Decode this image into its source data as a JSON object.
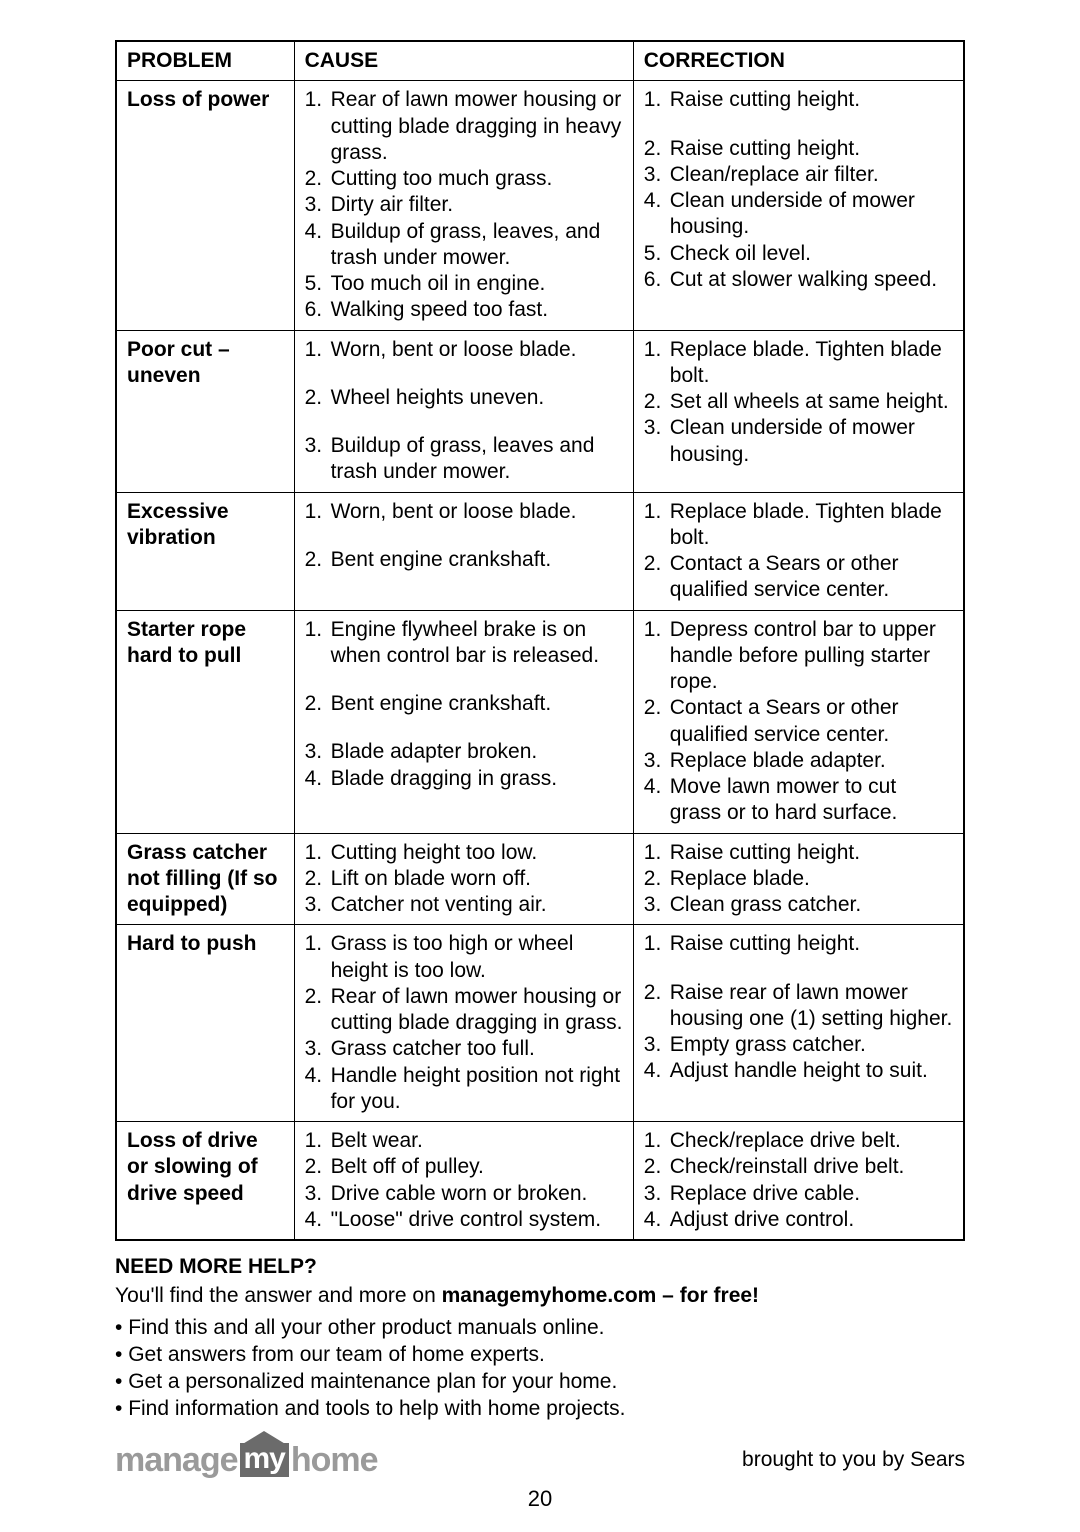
{
  "table": {
    "headers": {
      "problem": "PROBLEM",
      "cause": "CAUSE",
      "correction": "CORRECTION"
    },
    "rows": [
      {
        "problem": "Loss of power",
        "causes": [
          "Rear of lawn mower housing or cutting blade dragging in heavy grass.",
          "Cutting too much grass.",
          "Dirty air filter.",
          "Buildup of grass, leaves, and trash under mower.",
          "Too much oil in engine.",
          "Walking speed too fast."
        ],
        "corrections": [
          "Raise cutting height.",
          "Raise cutting height.",
          "Clean/replace air filter.",
          "Clean underside of mower housing.",
          "Check oil level.",
          "Cut at slower walking speed."
        ],
        "correction_spacer_after_1": true
      },
      {
        "problem": "Poor cut – uneven",
        "causes": [
          "Worn, bent or loose blade.",
          "Wheel heights uneven.",
          "Buildup of grass, leaves and trash under mower."
        ],
        "corrections": [
          "Replace blade. Tighten blade bolt.",
          "Set all wheels at same height.",
          "Clean underside of mower housing."
        ],
        "cause_spacing": true
      },
      {
        "problem": "Excessive vibration",
        "causes": [
          "Worn, bent or loose blade.",
          "Bent engine crankshaft."
        ],
        "corrections": [
          "Replace blade. Tighten blade bolt.",
          "Contact a Sears or other qualified service center."
        ],
        "cause_spacing": true
      },
      {
        "problem": "Starter rope hard to pull",
        "causes": [
          "Engine flywheel brake is on when control bar is released.",
          "Bent engine crankshaft.",
          "Blade adapter broken.",
          "Blade dragging in grass."
        ],
        "corrections": [
          "Depress control bar to upper handle before pulling starter rope.",
          "Contact a Sears or other qualified service center.",
          "Replace blade adapter.",
          "Move lawn mower to cut grass or to hard surface."
        ],
        "cause_spacing_2_3": true
      },
      {
        "problem": "Grass catcher not filling (If so equipped)",
        "causes": [
          "Cutting height too low.",
          "Lift on blade worn off.",
          "Catcher not venting air."
        ],
        "corrections": [
          "Raise cutting height.",
          "Replace blade.",
          "Clean grass catcher."
        ]
      },
      {
        "problem": "Hard to push",
        "causes": [
          "Grass is too high or wheel height is too low.",
          "Rear of lawn mower housing or cutting blade dragging in grass.",
          "Grass catcher too full.",
          "Handle height position not right for you."
        ],
        "corrections": [
          "Raise cutting height.",
          "Raise rear of lawn mower housing one (1) setting higher.",
          "Empty grass catcher.",
          "Adjust handle height to suit."
        ],
        "correction_spacer_after_1": true
      },
      {
        "problem": "Loss of drive or slowing of drive speed",
        "causes": [
          "Belt wear.",
          "Belt off of pulley.",
          "Drive cable worn or broken.",
          "\"Loose\" drive control system."
        ],
        "corrections": [
          "Check/replace drive belt.",
          "Check/reinstall drive belt.",
          "Replace drive cable.",
          "Adjust drive control."
        ]
      }
    ]
  },
  "help": {
    "title": "NEED MORE HELP?",
    "intro_pre": "You'll find the answer and more on ",
    "intro_bold": "managemyhome.com – for free!",
    "bullets": [
      "Find this and all your other product manuals online.",
      "Get answers from our team of home experts.",
      "Get a personalized maintenance plan for your home.",
      "Find information and tools to help with home projects."
    ]
  },
  "logo": {
    "part1": "manage",
    "part2": "my",
    "part3": "home"
  },
  "footer_right": "brought to you by Sears",
  "page_number": "20",
  "colors": {
    "text": "#000000",
    "bg": "#ffffff",
    "logo_gray": "#9a9a9a",
    "logo_box": "#6b6b6b"
  }
}
